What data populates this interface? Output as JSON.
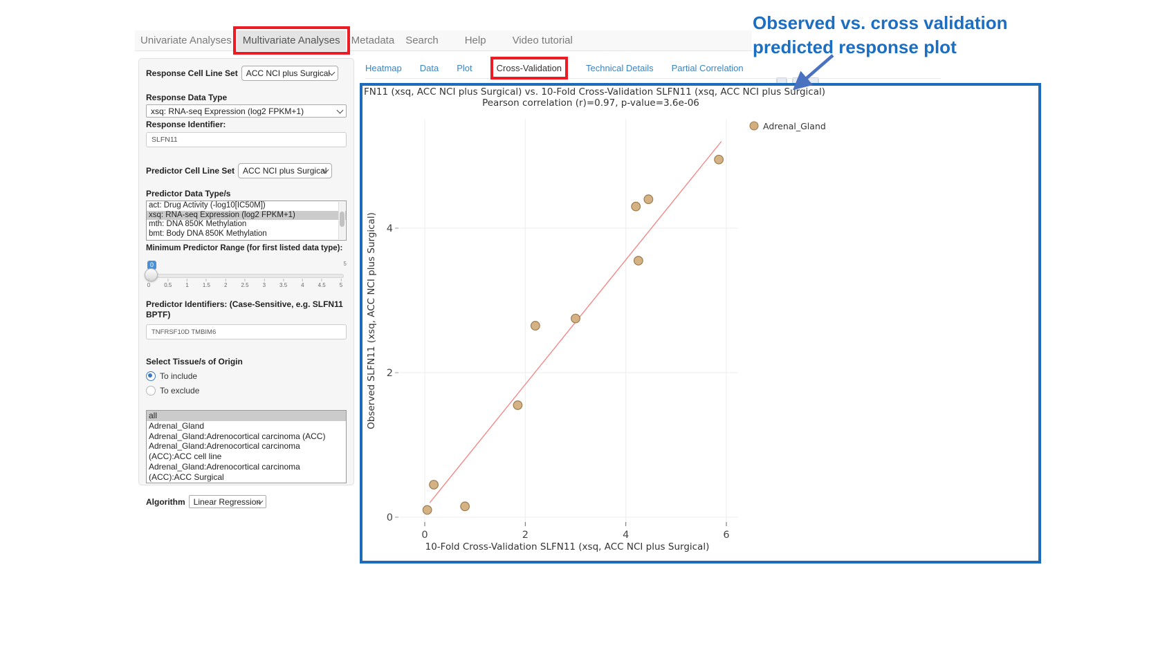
{
  "nav": {
    "items": [
      {
        "label": "Univariate Analyses",
        "active": false,
        "boxed": false
      },
      {
        "label": "Multivariate Analyses",
        "active": true,
        "boxed": true
      },
      {
        "label": "Metadata",
        "active": false,
        "boxed": false
      },
      {
        "label": "Search",
        "active": false,
        "boxed": false
      },
      {
        "label": "Help",
        "active": false,
        "boxed": false
      },
      {
        "label": "Video tutorial",
        "active": false,
        "boxed": false
      }
    ]
  },
  "annotation": {
    "line1": "Observed vs. cross validation",
    "line2": "predicted response plot",
    "color": "#1b6ec2"
  },
  "sidebar": {
    "response_cell_line_set": {
      "label": "Response Cell Line Set",
      "value": "ACC NCI plus Surgical"
    },
    "response_data_type": {
      "label": "Response Data Type",
      "value": "xsq: RNA-seq Expression (log2 FPKM+1)"
    },
    "response_identifier": {
      "label": "Response Identifier:",
      "value": "SLFN11"
    },
    "predictor_cell_line_set": {
      "label": "Predictor Cell Line Set",
      "value": "ACC NCI plus Surgical"
    },
    "predictor_data_types": {
      "label": "Predictor Data Type/s",
      "options": [
        {
          "label": "act: Drug Activity (-log10[IC50M])",
          "selected": false
        },
        {
          "label": "xsq: RNA-seq Expression (log2 FPKM+1)",
          "selected": true
        },
        {
          "label": "mth: DNA 850K Methylation",
          "selected": false
        },
        {
          "label": "bmt: Body DNA 850K Methylation",
          "selected": false
        }
      ]
    },
    "min_predictor_range": {
      "label": "Minimum Predictor Range (for first listed data type):",
      "bubble_value": "0",
      "max_label": "5",
      "ticks": [
        "0",
        "0.5",
        "1",
        "1.5",
        "2",
        "2.5",
        "3",
        "3.5",
        "4",
        "4.5",
        "5"
      ]
    },
    "predictor_identifiers": {
      "label": "Predictor Identifiers: (Case-Sensitive, e.g. SLFN11 BPTF)",
      "value": "TNFRSF10D TMBIM6"
    },
    "tissue": {
      "label": "Select Tissue/s of Origin",
      "radios": [
        {
          "label": "To include",
          "checked": true
        },
        {
          "label": "To exclude",
          "checked": false
        }
      ],
      "options": [
        {
          "label": "all",
          "selected": true
        },
        {
          "label": "Adrenal_Gland",
          "selected": false
        },
        {
          "label": "Adrenal_Gland:Adrenocortical carcinoma (ACC)",
          "selected": false
        },
        {
          "label": "Adrenal_Gland:Adrenocortical carcinoma (ACC):ACC cell line",
          "selected": false
        },
        {
          "label": "Adrenal_Gland:Adrenocortical carcinoma (ACC):ACC Surgical",
          "selected": false
        }
      ]
    },
    "algorithm": {
      "label": "Algorithm",
      "value": "Linear Regression"
    }
  },
  "tabs": {
    "items": [
      {
        "label": "Heatmap",
        "active": false,
        "boxed": false
      },
      {
        "label": "Data",
        "active": false,
        "boxed": false
      },
      {
        "label": "Plot",
        "active": false,
        "boxed": false
      },
      {
        "label": "Cross-Validation",
        "active": true,
        "boxed": true
      },
      {
        "label": "Technical Details",
        "active": false,
        "boxed": false
      },
      {
        "label": "Partial Correlation",
        "active": false,
        "boxed": false
      }
    ]
  },
  "chart_data": {
    "type": "scatter",
    "title": "FN11 (xsq, ACC NCI plus Surgical) vs. 10-Fold Cross-Validation SLFN11 (xsq, ACC NCI plus Surgical)",
    "subtitle": "Pearson correlation (r)=0.97, p-value=3.6e-06",
    "xlabel": "10-Fold Cross-Validation SLFN11 (xsq, ACC NCI plus Surgical)",
    "ylabel": "Observed SLFN11 (xsq, ACC NCI plus Surgical)",
    "xlim": [
      -0.5,
      6.2
    ],
    "ylim": [
      -0.1,
      5.5
    ],
    "xticks": [
      0,
      2,
      4,
      6
    ],
    "yticks": [
      0,
      2,
      4
    ],
    "grid": true,
    "legend_position": "top-right",
    "legend": [
      {
        "label": "Adrenal_Gland",
        "marker_color": "#d2ae7d"
      }
    ],
    "series": [
      {
        "name": "Adrenal_Gland",
        "points": [
          [
            0.05,
            0.1
          ],
          [
            0.18,
            0.45
          ],
          [
            0.8,
            0.15
          ],
          [
            1.85,
            1.55
          ],
          [
            2.2,
            2.65
          ],
          [
            3.0,
            2.75
          ],
          [
            4.25,
            3.55
          ],
          [
            4.2,
            4.3
          ],
          [
            4.45,
            4.4
          ],
          [
            5.85,
            4.95
          ]
        ]
      }
    ],
    "regression_line": {
      "x": [
        0.1,
        5.9
      ],
      "y": [
        0.2,
        5.2
      ],
      "color": "#f58080"
    },
    "colors": {
      "marker_fill": "#d2ae7d",
      "marker_stroke": "#9b7b50",
      "grid": "#ededed",
      "tick_text": "#444444"
    }
  }
}
